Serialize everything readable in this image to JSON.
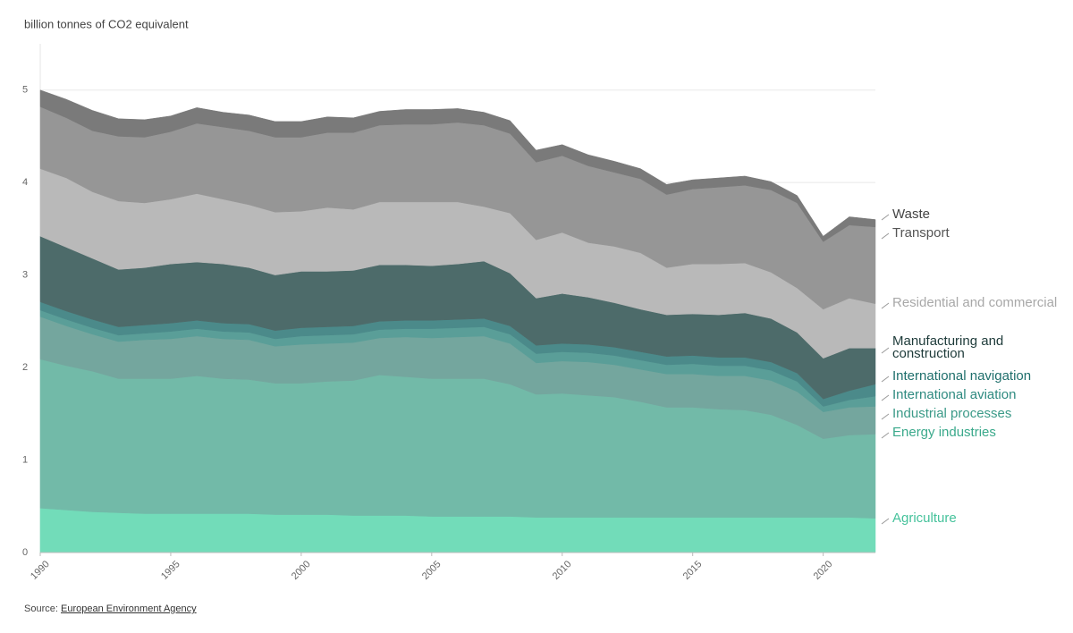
{
  "chart_data": {
    "type": "stacked_area",
    "y_label": "billion tonnes of CO2 equivalent",
    "source_prefix": "Source:",
    "source": "European Environment Agency",
    "x": [
      1990,
      1991,
      1992,
      1993,
      1994,
      1995,
      1996,
      1997,
      1998,
      1999,
      2000,
      2001,
      2002,
      2003,
      2004,
      2005,
      2006,
      2007,
      2008,
      2009,
      2010,
      2011,
      2012,
      2013,
      2014,
      2015,
      2016,
      2017,
      2018,
      2019,
      2020,
      2021,
      2022
    ],
    "xlim": [
      1990,
      2022
    ],
    "xticks": [
      1990,
      1995,
      2000,
      2005,
      2010,
      2015,
      2020
    ],
    "ylim": [
      0,
      5.5
    ],
    "yticks": [
      0,
      1,
      2,
      3,
      4,
      5
    ],
    "grid": true,
    "series": [
      {
        "name": "Agriculture",
        "color": "#72dcb9",
        "label_color": "#45c29b",
        "values": [
          0.48,
          0.46,
          0.44,
          0.43,
          0.42,
          0.42,
          0.42,
          0.42,
          0.42,
          0.41,
          0.41,
          0.41,
          0.4,
          0.4,
          0.4,
          0.39,
          0.39,
          0.39,
          0.39,
          0.38,
          0.38,
          0.38,
          0.38,
          0.38,
          0.38,
          0.38,
          0.38,
          0.38,
          0.38,
          0.38,
          0.38,
          0.38,
          0.37
        ]
      },
      {
        "name": "Energy industries",
        "color": "#72baa8",
        "label_color": "#3aa98b",
        "values": [
          1.61,
          1.56,
          1.52,
          1.45,
          1.46,
          1.46,
          1.49,
          1.46,
          1.45,
          1.42,
          1.42,
          1.44,
          1.46,
          1.52,
          1.5,
          1.49,
          1.49,
          1.49,
          1.43,
          1.33,
          1.34,
          1.32,
          1.3,
          1.25,
          1.19,
          1.19,
          1.17,
          1.16,
          1.11,
          1.0,
          0.85,
          0.89,
          0.91
        ]
      },
      {
        "name": "Industrial processes",
        "color": "#74a69e",
        "label_color": "#3b9a88",
        "values": [
          0.46,
          0.43,
          0.4,
          0.4,
          0.42,
          0.43,
          0.43,
          0.43,
          0.43,
          0.4,
          0.42,
          0.41,
          0.41,
          0.4,
          0.43,
          0.44,
          0.45,
          0.46,
          0.44,
          0.34,
          0.35,
          0.36,
          0.35,
          0.35,
          0.36,
          0.36,
          0.36,
          0.37,
          0.37,
          0.36,
          0.29,
          0.3,
          0.3
        ]
      },
      {
        "name": "International aviation",
        "color": "#5a9e98",
        "label_color": "#2e8a80",
        "values": [
          0.07,
          0.07,
          0.07,
          0.07,
          0.07,
          0.08,
          0.08,
          0.08,
          0.08,
          0.08,
          0.09,
          0.09,
          0.09,
          0.09,
          0.09,
          0.1,
          0.1,
          0.1,
          0.1,
          0.1,
          0.1,
          0.1,
          0.1,
          0.1,
          0.1,
          0.11,
          0.11,
          0.11,
          0.11,
          0.11,
          0.06,
          0.08,
          0.11
        ]
      },
      {
        "name": "International navigation",
        "color": "#4b8a8a",
        "label_color": "#1f6f6c",
        "values": [
          0.09,
          0.09,
          0.09,
          0.09,
          0.09,
          0.09,
          0.09,
          0.09,
          0.09,
          0.09,
          0.09,
          0.09,
          0.09,
          0.09,
          0.09,
          0.09,
          0.09,
          0.09,
          0.09,
          0.09,
          0.09,
          0.09,
          0.09,
          0.09,
          0.09,
          0.09,
          0.09,
          0.09,
          0.09,
          0.09,
          0.08,
          0.1,
          0.13
        ]
      },
      {
        "name": "Manufacturing and construction",
        "color": "#4d6b6a",
        "label_color": "#1e3b3a",
        "values": [
          0.71,
          0.69,
          0.66,
          0.62,
          0.62,
          0.64,
          0.63,
          0.64,
          0.61,
          0.6,
          0.61,
          0.6,
          0.6,
          0.61,
          0.6,
          0.59,
          0.6,
          0.62,
          0.57,
          0.51,
          0.54,
          0.51,
          0.48,
          0.46,
          0.45,
          0.45,
          0.46,
          0.48,
          0.47,
          0.44,
          0.44,
          0.46,
          0.39
        ]
      },
      {
        "name": "Residential and commercial",
        "color": "#b9b9b9",
        "label_color": "#a8a8a8",
        "values": [
          0.73,
          0.75,
          0.72,
          0.74,
          0.7,
          0.7,
          0.74,
          0.7,
          0.68,
          0.68,
          0.65,
          0.69,
          0.66,
          0.68,
          0.68,
          0.69,
          0.67,
          0.59,
          0.65,
          0.63,
          0.66,
          0.59,
          0.61,
          0.61,
          0.51,
          0.54,
          0.55,
          0.54,
          0.5,
          0.48,
          0.53,
          0.54,
          0.48
        ]
      },
      {
        "name": "Transport",
        "color": "#969696",
        "label_color": "#555555",
        "values": [
          0.67,
          0.65,
          0.66,
          0.7,
          0.71,
          0.73,
          0.76,
          0.78,
          0.8,
          0.81,
          0.8,
          0.81,
          0.83,
          0.83,
          0.84,
          0.84,
          0.86,
          0.88,
          0.86,
          0.84,
          0.83,
          0.83,
          0.8,
          0.8,
          0.79,
          0.81,
          0.83,
          0.84,
          0.89,
          0.92,
          0.73,
          0.79,
          0.83
        ]
      },
      {
        "name": "Waste",
        "color": "#7a7a7a",
        "label_color": "#444444",
        "values": [
          0.18,
          0.2,
          0.22,
          0.19,
          0.19,
          0.17,
          0.17,
          0.16,
          0.17,
          0.17,
          0.17,
          0.17,
          0.16,
          0.15,
          0.16,
          0.16,
          0.15,
          0.14,
          0.14,
          0.13,
          0.12,
          0.12,
          0.12,
          0.11,
          0.11,
          0.1,
          0.1,
          0.1,
          0.09,
          0.08,
          0.06,
          0.09,
          0.08
        ]
      }
    ]
  }
}
